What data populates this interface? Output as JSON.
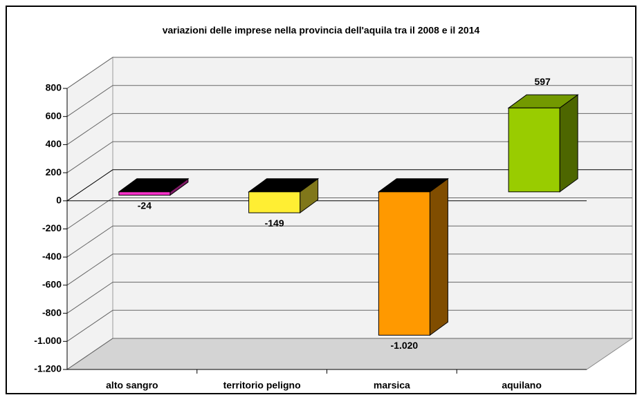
{
  "chart_data": {
    "type": "bar3d",
    "title": "variazioni delle imprese nella provincia dell'aquila tra il 2008 e il 2014",
    "categories": [
      "alto sangro",
      "territorio peligno",
      "marsica",
      "aquilano"
    ],
    "values": [
      -24,
      -149,
      -1020,
      597
    ],
    "value_labels": [
      "-24",
      "-149",
      "-1.020",
      "597"
    ],
    "colors": [
      "#ff33cc",
      "#ffee33",
      "#ff9900",
      "#99cc00"
    ],
    "ylim": [
      -1200,
      800
    ],
    "yticks": [
      {
        "value": -1200,
        "label": "-1.200"
      },
      {
        "value": -1000,
        "label": "-1.000"
      },
      -800,
      -600,
      -400,
      -200,
      0,
      200,
      400,
      600,
      800
    ],
    "grid": true
  }
}
